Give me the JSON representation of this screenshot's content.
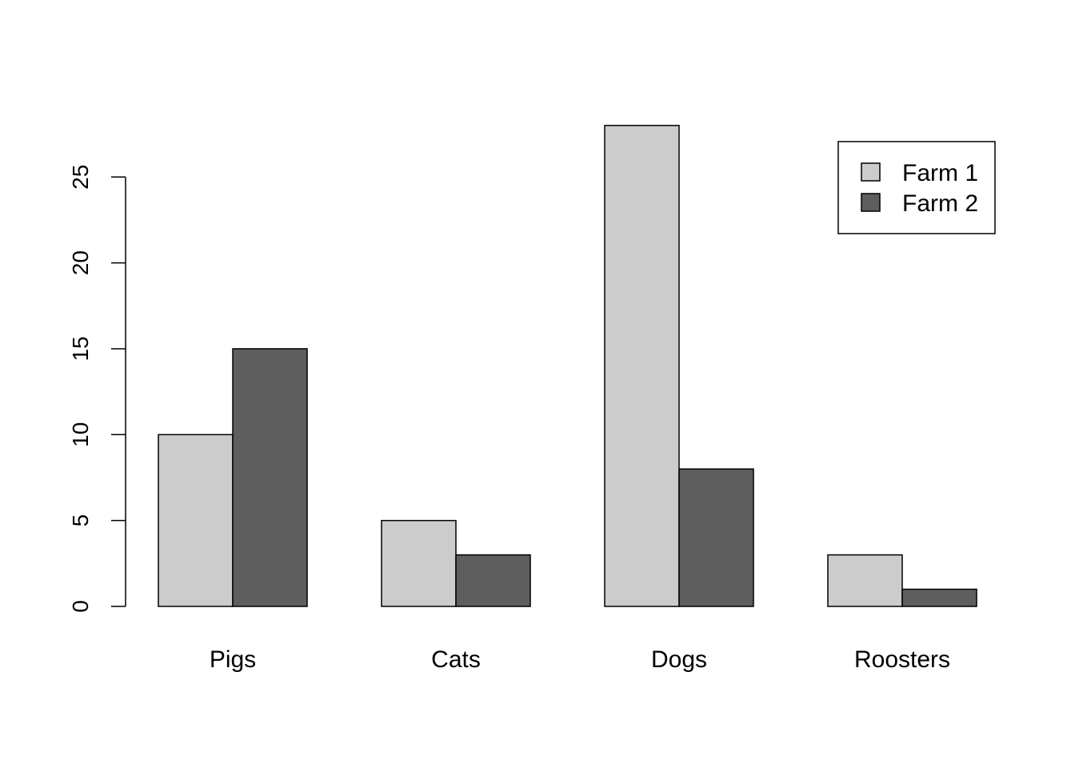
{
  "chart_data": {
    "type": "bar",
    "title": "",
    "xlabel": "",
    "ylabel": "",
    "categories": [
      "Pigs",
      "Cats",
      "Dogs",
      "Roosters"
    ],
    "series": [
      {
        "name": "Farm 1",
        "values": [
          10,
          5,
          28,
          3
        ],
        "color": "#cccccc"
      },
      {
        "name": "Farm 2",
        "values": [
          15,
          3,
          8,
          1
        ],
        "color": "#5e5e5e"
      }
    ],
    "yticks": [
      0,
      5,
      10,
      15,
      20,
      25
    ],
    "ylim": [
      0,
      28
    ],
    "grid": false,
    "legend_position": "top-right",
    "bar_mode": "grouped"
  }
}
